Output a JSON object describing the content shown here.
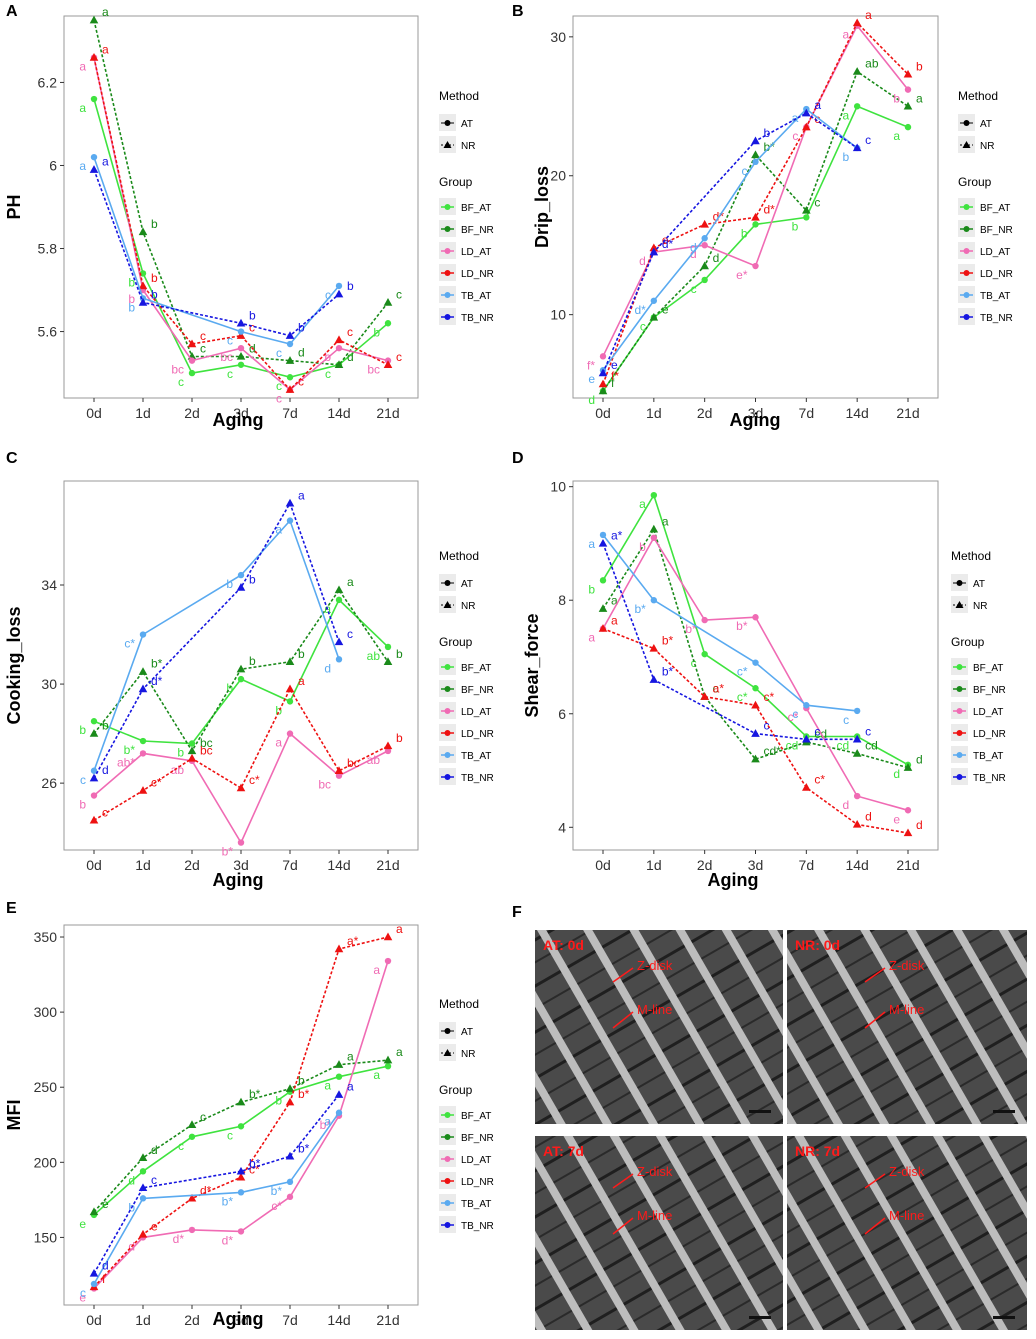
{
  "figure": {
    "colors": {
      "BF_AT": "#3fe33f",
      "BF_NR": "#1a8a1a",
      "LD_AT": "#f06bb4",
      "LD_NR": "#ee1111",
      "TB_AT": "#5aaaf0",
      "TB_NR": "#1616e0"
    },
    "legend": {
      "method_title": "Method",
      "methods": [
        "AT",
        "NR"
      ],
      "group_title": "Group",
      "groups": [
        "BF_AT",
        "BF_NR",
        "LD_AT",
        "LD_NR",
        "TB_AT",
        "TB_NR"
      ]
    },
    "micrographs": {
      "panel_letter": "F",
      "tiles": [
        {
          "title": "AT: 0d",
          "labels": [
            "Z-disk",
            "M-line"
          ]
        },
        {
          "title": "NR: 0d",
          "labels": [
            "Z-disk",
            "M-line"
          ]
        },
        {
          "title": "AT: 7d",
          "labels": [
            "Z-disk",
            "M-line"
          ]
        },
        {
          "title": "NR: 7d",
          "labels": [
            "Z-disk",
            "M-line"
          ]
        }
      ]
    }
  },
  "chart_data": [
    {
      "panel": "A",
      "type": "line",
      "title": "",
      "xlabel": "Aging",
      "ylabel": "PH",
      "categories": [
        "0d",
        "1d",
        "2d",
        "3d",
        "7d",
        "14d",
        "21d"
      ],
      "ylim": [
        5.44,
        6.36
      ],
      "yticks": [
        5.6,
        5.8,
        6.0,
        6.2
      ],
      "series": [
        {
          "name": "BF_AT",
          "values": [
            6.16,
            5.74,
            5.5,
            5.52,
            5.49,
            5.52,
            5.62
          ],
          "labels": [
            "a",
            "b",
            "c",
            "c",
            "c",
            "c",
            "b"
          ]
        },
        {
          "name": "BF_NR",
          "values": [
            6.35,
            5.84,
            5.54,
            5.54,
            5.53,
            5.52,
            5.67
          ],
          "labels": [
            "a",
            "b",
            "c",
            "d",
            "d",
            "d",
            "c"
          ]
        },
        {
          "name": "LD_AT",
          "values": [
            6.26,
            5.7,
            5.53,
            5.56,
            5.46,
            5.56,
            5.53
          ],
          "labels": [
            "a",
            "b",
            "bc",
            "bc",
            "c",
            "b",
            "bc"
          ]
        },
        {
          "name": "LD_NR",
          "values": [
            6.26,
            5.71,
            5.57,
            5.59,
            5.46,
            5.58,
            5.52
          ],
          "labels": [
            "a",
            "b",
            "c",
            "c",
            "c",
            "c",
            "c"
          ]
        },
        {
          "name": "TB_AT",
          "values": [
            6.02,
            5.68,
            null,
            5.6,
            5.57,
            5.71,
            null
          ],
          "labels": [
            "a",
            "b",
            "",
            "c",
            "c",
            "c",
            ""
          ]
        },
        {
          "name": "TB_NR",
          "values": [
            5.99,
            5.67,
            null,
            5.62,
            5.59,
            5.69,
            null
          ],
          "labels": [
            "a",
            "b",
            "",
            "b",
            "b",
            "b",
            ""
          ]
        }
      ]
    },
    {
      "panel": "B",
      "type": "line",
      "title": "",
      "xlabel": "Aging",
      "ylabel": "Drip_loss",
      "categories": [
        "0d",
        "1d",
        "2d",
        "3d",
        "7d",
        "14d",
        "21d"
      ],
      "ylim": [
        4,
        31.5
      ],
      "yticks": [
        10,
        20,
        30
      ],
      "series": [
        {
          "name": "BF_AT",
          "values": [
            4.5,
            9.8,
            12.5,
            16.5,
            17.0,
            25.0,
            23.5
          ],
          "labels": [
            "d",
            "c",
            "c",
            "b",
            "b",
            "a",
            "a"
          ]
        },
        {
          "name": "BF_NR",
          "values": [
            4.5,
            9.8,
            13.5,
            21.5,
            17.5,
            27.5,
            25.0
          ],
          "labels": [
            "f",
            "e",
            "d",
            "b*",
            "c",
            "ab",
            "a"
          ]
        },
        {
          "name": "LD_AT",
          "values": [
            7.0,
            14.5,
            15.0,
            13.5,
            23.5,
            30.8,
            26.2
          ],
          "labels": [
            "f*",
            "d",
            "d",
            "e*",
            "c",
            "a",
            "b"
          ]
        },
        {
          "name": "LD_NR",
          "values": [
            5.0,
            14.8,
            16.5,
            17.0,
            23.5,
            31.0,
            27.3
          ],
          "labels": [
            "f*",
            "e",
            "d*",
            "d*",
            "c",
            "a",
            "b"
          ]
        },
        {
          "name": "TB_AT",
          "values": [
            6.0,
            11.0,
            15.5,
            21.0,
            24.8,
            22.0,
            null
          ],
          "labels": [
            "e",
            "d*",
            "d",
            "c",
            "a",
            "b",
            ""
          ]
        },
        {
          "name": "TB_NR",
          "values": [
            5.8,
            14.5,
            null,
            22.5,
            24.5,
            22.0,
            null
          ],
          "labels": [
            "e",
            "d*",
            "",
            "b",
            "a",
            "c",
            ""
          ]
        }
      ]
    },
    {
      "panel": "C",
      "type": "line",
      "title": "",
      "xlabel": "Aging",
      "ylabel": "Cooking_loss",
      "categories": [
        "0d",
        "1d",
        "2d",
        "3d",
        "7d",
        "14d",
        "21d"
      ],
      "ylim": [
        23.3,
        38.2
      ],
      "yticks": [
        26,
        30,
        34
      ],
      "series": [
        {
          "name": "BF_AT",
          "values": [
            28.5,
            27.7,
            27.6,
            30.2,
            29.3,
            33.4,
            31.5
          ],
          "labels": [
            "b",
            "b*",
            "b",
            "b",
            "b",
            "a",
            "ab"
          ]
        },
        {
          "name": "BF_NR",
          "values": [
            28.0,
            30.5,
            27.3,
            30.6,
            30.9,
            33.8,
            30.9
          ],
          "labels": [
            "b",
            "b*",
            "bc",
            "b",
            "b",
            "a",
            "b"
          ]
        },
        {
          "name": "LD_AT",
          "values": [
            25.5,
            27.2,
            26.9,
            23.6,
            28.0,
            26.3,
            27.3
          ],
          "labels": [
            "b",
            "ab*",
            "ab",
            "b*",
            "a",
            "bc",
            "ab"
          ]
        },
        {
          "name": "LD_NR",
          "values": [
            24.5,
            25.7,
            27.0,
            25.8,
            29.8,
            26.5,
            27.5
          ],
          "labels": [
            "c",
            "c*",
            "bc",
            "c*",
            "a",
            "bc",
            "b"
          ]
        },
        {
          "name": "TB_AT",
          "values": [
            26.5,
            32.0,
            null,
            34.4,
            36.6,
            31.0,
            null
          ],
          "labels": [
            "c",
            "c*",
            "",
            "b",
            "a",
            "d",
            ""
          ]
        },
        {
          "name": "TB_NR",
          "values": [
            26.2,
            29.8,
            null,
            33.9,
            37.3,
            31.7,
            null
          ],
          "labels": [
            "d",
            "d*",
            "",
            "b",
            "a",
            "c",
            ""
          ]
        }
      ]
    },
    {
      "panel": "D",
      "type": "line",
      "title": "",
      "xlabel": "Aging",
      "ylabel": "Shear_force",
      "categories": [
        "0d",
        "1d",
        "2d",
        "3d",
        "7d",
        "14d",
        "21d"
      ],
      "ylim": [
        3.6,
        10.1
      ],
      "yticks": [
        4,
        6,
        8,
        10
      ],
      "series": [
        {
          "name": "BF_AT",
          "values": [
            8.35,
            9.85,
            7.05,
            6.45,
            5.6,
            5.6,
            5.1
          ],
          "labels": [
            "b",
            "a",
            "c",
            "c*",
            "cd",
            "cd",
            "d"
          ]
        },
        {
          "name": "BF_NR",
          "values": [
            7.85,
            9.25,
            6.3,
            5.2,
            5.5,
            5.3,
            5.05
          ],
          "labels": [
            "a",
            "a",
            "c",
            "cd*",
            "cd",
            "cd",
            "d"
          ]
        },
        {
          "name": "LD_AT",
          "values": [
            7.5,
            9.1,
            7.65,
            7.7,
            6.1,
            4.55,
            4.3
          ],
          "labels": [
            "a",
            "b",
            "b*",
            "b*",
            "c*",
            "d",
            "e"
          ]
        },
        {
          "name": "LD_NR",
          "values": [
            7.5,
            7.15,
            6.3,
            6.15,
            4.7,
            4.05,
            3.9
          ],
          "labels": [
            "a",
            "b*",
            "a*",
            "c*",
            "c*",
            "d",
            "d"
          ]
        },
        {
          "name": "TB_AT",
          "values": [
            9.15,
            8.0,
            null,
            6.9,
            6.15,
            6.05,
            null
          ],
          "labels": [
            "a",
            "b*",
            "",
            "c*",
            "c",
            "c",
            ""
          ]
        },
        {
          "name": "TB_NR",
          "values": [
            9.0,
            6.6,
            null,
            5.65,
            5.55,
            5.55,
            null
          ],
          "labels": [
            "a*",
            "b*",
            "",
            "c",
            "c",
            "c",
            ""
          ]
        }
      ]
    },
    {
      "panel": "E",
      "type": "line",
      "title": "",
      "xlabel": "Aging",
      "ylabel": "MFI",
      "categories": [
        "0d",
        "1d",
        "2d",
        "3d",
        "7d",
        "14d",
        "21d"
      ],
      "ylim": [
        105,
        358
      ],
      "yticks": [
        150,
        200,
        250,
        300,
        350
      ],
      "series": [
        {
          "name": "BF_AT",
          "values": [
            165,
            194,
            217,
            224,
            247,
            257,
            264
          ],
          "labels": [
            "e",
            "d",
            "c",
            "c",
            "b",
            "a",
            "a"
          ]
        },
        {
          "name": "BF_NR",
          "values": [
            167,
            203,
            225,
            240,
            249,
            265,
            268
          ],
          "labels": [
            "e",
            "d",
            "c",
            "b*",
            "b",
            "a",
            "a"
          ]
        },
        {
          "name": "LD_AT",
          "values": [
            116,
            150,
            155,
            154,
            177,
            231,
            334
          ],
          "labels": [
            "e",
            "d",
            "d*",
            "d*",
            "c*",
            "b*",
            "a"
          ]
        },
        {
          "name": "LD_NR",
          "values": [
            117,
            152,
            176,
            190,
            240,
            342,
            350
          ],
          "labels": [
            "f",
            "e",
            "d*",
            "c*",
            "b*",
            "a*",
            "a"
          ]
        },
        {
          "name": "TB_AT",
          "values": [
            119,
            176,
            null,
            180,
            187,
            233,
            null
          ],
          "labels": [
            "c",
            "b",
            "",
            "b*",
            "b*",
            "a",
            ""
          ]
        },
        {
          "name": "TB_NR",
          "values": [
            126,
            183,
            null,
            194,
            204,
            245,
            null
          ],
          "labels": [
            "d",
            "c",
            "",
            "b*",
            "b*",
            "a",
            ""
          ]
        }
      ]
    }
  ]
}
